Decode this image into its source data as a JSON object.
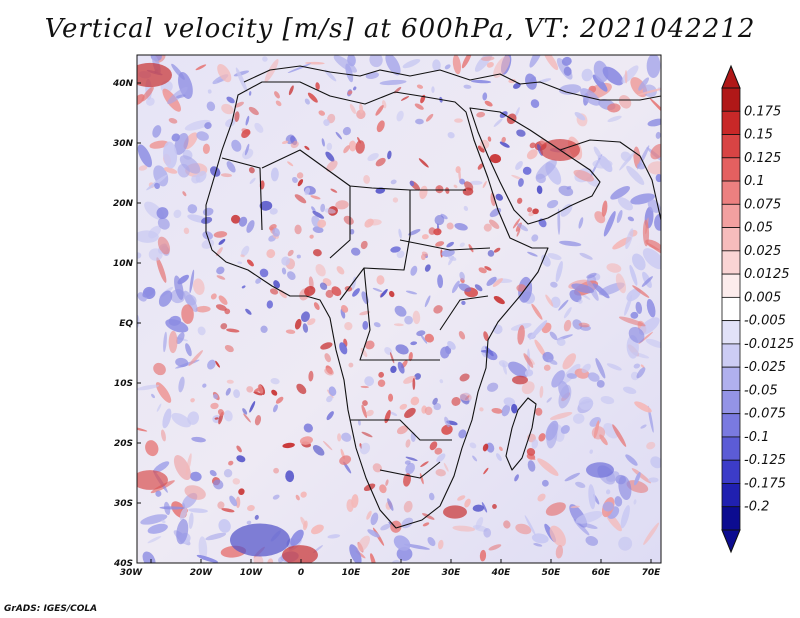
{
  "title": "Vertical velocity [m/s] at 600hPa, VT: 2021042212",
  "credit": "GrADS: IGES/COLA",
  "map": {
    "region": "Africa",
    "x_ticks": [
      "30W",
      "20W",
      "10W",
      "0",
      "10E",
      "20E",
      "30E",
      "40E",
      "50E",
      "60E",
      "70E"
    ],
    "y_ticks": [
      "40N",
      "30N",
      "20N",
      "10N",
      "EQ",
      "10S",
      "20S",
      "30S",
      "40S"
    ]
  },
  "colorbar": {
    "labels": [
      "0.175",
      "0.15",
      "0.125",
      "0.1",
      "0.075",
      "0.05",
      "0.025",
      "0.0125",
      "0.005",
      "-0.005",
      "-0.0125",
      "-0.025",
      "-0.05",
      "-0.075",
      "-0.1",
      "-0.125",
      "-0.175",
      "-0.2"
    ],
    "colors": [
      "#b01818",
      "#c82828",
      "#d84444",
      "#e46060",
      "#ec8080",
      "#f2a0a0",
      "#f6bcbc",
      "#fad4d4",
      "#fcecec",
      "#ffffff",
      "#e2e2f8",
      "#ccccf4",
      "#b0b0ee",
      "#9494e6",
      "#7a7ae0",
      "#5c5cd6",
      "#3c3cc8",
      "#2020b0",
      "#0c0c90"
    ]
  },
  "icons": {
    "colorbar_top": "triangle-up-icon",
    "colorbar_bottom": "triangle-down-icon"
  }
}
